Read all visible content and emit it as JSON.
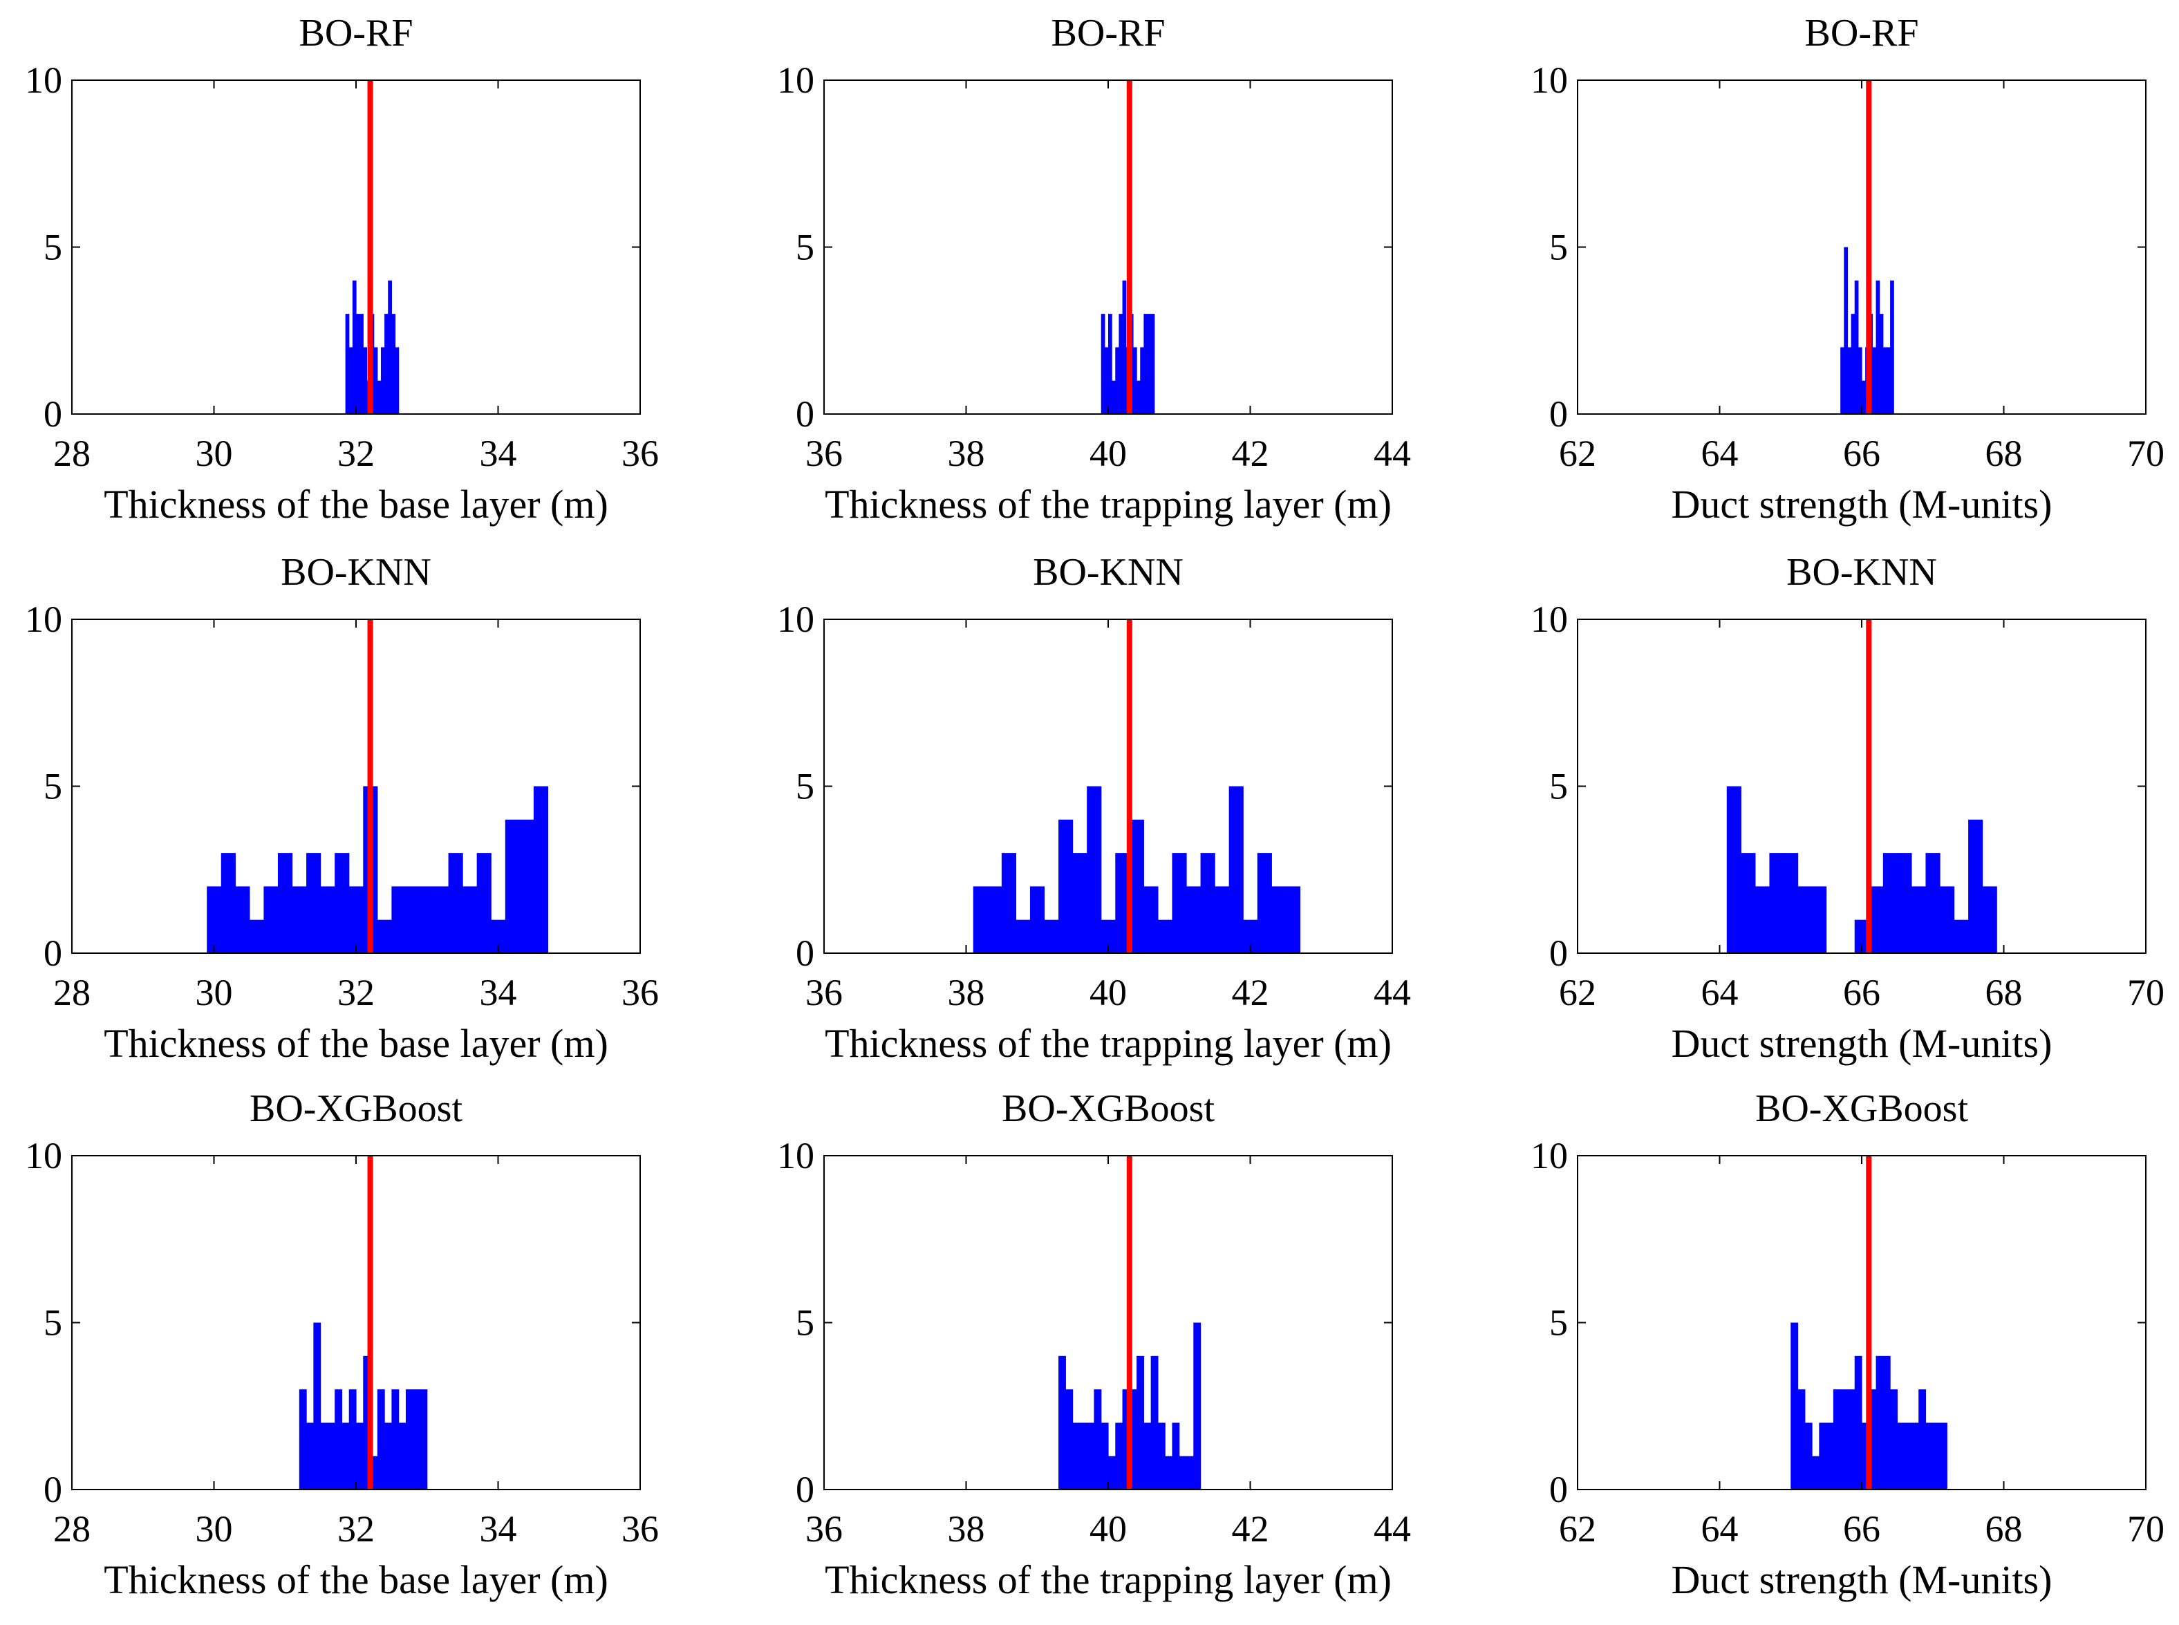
{
  "figure": {
    "colors": {
      "bar": "#0000ff",
      "reference": "#ff0000",
      "axes": "#000000"
    }
  },
  "chart_data": [
    {
      "type": "bar",
      "title": "BO-RF",
      "xlabel": "Thickness of the base layer (m)",
      "xlim": [
        28,
        36
      ],
      "ylim": [
        0,
        10
      ],
      "xticks": [
        28,
        30,
        32,
        34,
        36
      ],
      "yticks": [
        0,
        5,
        10
      ],
      "reference_x": 32.2,
      "bin_width": 0.05,
      "bins": [
        [
          31.85,
          3
        ],
        [
          31.9,
          2
        ],
        [
          31.95,
          4
        ],
        [
          32.0,
          3
        ],
        [
          32.05,
          3
        ],
        [
          32.1,
          2
        ],
        [
          32.15,
          1
        ],
        [
          32.2,
          3
        ],
        [
          32.25,
          2
        ],
        [
          32.3,
          1
        ],
        [
          32.35,
          2
        ],
        [
          32.4,
          3
        ],
        [
          32.45,
          4
        ],
        [
          32.5,
          3
        ],
        [
          32.55,
          2
        ]
      ]
    },
    {
      "type": "bar",
      "title": "BO-RF",
      "xlabel": "Thickness of the trapping layer (m)",
      "xlim": [
        36,
        44
      ],
      "ylim": [
        0,
        10
      ],
      "xticks": [
        36,
        38,
        40,
        42,
        44
      ],
      "yticks": [
        0,
        5,
        10
      ],
      "reference_x": 40.3,
      "bin_width": 0.05,
      "bins": [
        [
          39.9,
          3
        ],
        [
          39.95,
          2
        ],
        [
          40.0,
          3
        ],
        [
          40.05,
          1
        ],
        [
          40.1,
          2
        ],
        [
          40.15,
          3
        ],
        [
          40.2,
          4
        ],
        [
          40.25,
          2
        ],
        [
          40.3,
          3
        ],
        [
          40.35,
          2
        ],
        [
          40.4,
          1
        ],
        [
          40.45,
          2
        ],
        [
          40.5,
          3
        ],
        [
          40.55,
          3
        ],
        [
          40.6,
          3
        ]
      ]
    },
    {
      "type": "bar",
      "title": "BO-RF",
      "xlabel": "Duct strength (M-units)",
      "xlim": [
        62,
        70
      ],
      "ylim": [
        0,
        10
      ],
      "xticks": [
        62,
        64,
        66,
        68,
        70
      ],
      "yticks": [
        0,
        5,
        10
      ],
      "reference_x": 66.1,
      "bin_width": 0.05,
      "bins": [
        [
          65.7,
          2
        ],
        [
          65.75,
          5
        ],
        [
          65.8,
          2
        ],
        [
          65.85,
          3
        ],
        [
          65.9,
          4
        ],
        [
          65.95,
          2
        ],
        [
          66.0,
          1
        ],
        [
          66.05,
          2
        ],
        [
          66.1,
          3
        ],
        [
          66.15,
          2
        ],
        [
          66.2,
          4
        ],
        [
          66.25,
          3
        ],
        [
          66.3,
          2
        ],
        [
          66.35,
          2
        ],
        [
          66.4,
          4
        ]
      ]
    },
    {
      "type": "bar",
      "title": "BO-KNN",
      "xlabel": "Thickness of the base layer (m)",
      "xlim": [
        28,
        36
      ],
      "ylim": [
        0,
        10
      ],
      "xticks": [
        28,
        30,
        32,
        34,
        36
      ],
      "yticks": [
        0,
        5,
        10
      ],
      "reference_x": 32.2,
      "bin_width": 0.2,
      "bins": [
        [
          29.9,
          2
        ],
        [
          30.1,
          3
        ],
        [
          30.3,
          2
        ],
        [
          30.5,
          1
        ],
        [
          30.7,
          2
        ],
        [
          30.9,
          3
        ],
        [
          31.1,
          2
        ],
        [
          31.3,
          3
        ],
        [
          31.5,
          2
        ],
        [
          31.7,
          3
        ],
        [
          31.9,
          2
        ],
        [
          32.1,
          5
        ],
        [
          32.3,
          1
        ],
        [
          32.5,
          2
        ],
        [
          32.7,
          2
        ],
        [
          32.9,
          2
        ],
        [
          33.1,
          2
        ],
        [
          33.3,
          3
        ],
        [
          33.5,
          2
        ],
        [
          33.7,
          3
        ],
        [
          33.9,
          1
        ],
        [
          34.1,
          4
        ],
        [
          34.3,
          4
        ],
        [
          34.5,
          5
        ]
      ]
    },
    {
      "type": "bar",
      "title": "BO-KNN",
      "xlabel": "Thickness of the trapping layer (m)",
      "xlim": [
        36,
        44
      ],
      "ylim": [
        0,
        10
      ],
      "xticks": [
        36,
        38,
        40,
        42,
        44
      ],
      "yticks": [
        0,
        5,
        10
      ],
      "reference_x": 40.3,
      "bin_width": 0.2,
      "bins": [
        [
          38.1,
          2
        ],
        [
          38.3,
          2
        ],
        [
          38.5,
          3
        ],
        [
          38.7,
          1
        ],
        [
          38.9,
          2
        ],
        [
          39.1,
          1
        ],
        [
          39.3,
          4
        ],
        [
          39.5,
          3
        ],
        [
          39.7,
          5
        ],
        [
          39.9,
          1
        ],
        [
          40.1,
          3
        ],
        [
          40.3,
          4
        ],
        [
          40.5,
          2
        ],
        [
          40.7,
          1
        ],
        [
          40.9,
          3
        ],
        [
          41.1,
          2
        ],
        [
          41.3,
          3
        ],
        [
          41.5,
          2
        ],
        [
          41.7,
          5
        ],
        [
          41.9,
          1
        ],
        [
          42.1,
          3
        ],
        [
          42.3,
          2
        ],
        [
          42.5,
          2
        ]
      ]
    },
    {
      "type": "bar",
      "title": "BO-KNN",
      "xlabel": "Duct strength (M-units)",
      "xlim": [
        62,
        70
      ],
      "ylim": [
        0,
        10
      ],
      "xticks": [
        62,
        64,
        66,
        68,
        70
      ],
      "yticks": [
        0,
        5,
        10
      ],
      "reference_x": 66.1,
      "bin_width": 0.2,
      "bins": [
        [
          64.1,
          5
        ],
        [
          64.3,
          3
        ],
        [
          64.5,
          2
        ],
        [
          64.7,
          3
        ],
        [
          64.9,
          3
        ],
        [
          65.1,
          2
        ],
        [
          65.3,
          2
        ],
        [
          65.5,
          0
        ],
        [
          65.7,
          0
        ],
        [
          65.9,
          1
        ],
        [
          66.1,
          2
        ],
        [
          66.3,
          3
        ],
        [
          66.5,
          3
        ],
        [
          66.7,
          2
        ],
        [
          66.9,
          3
        ],
        [
          67.1,
          2
        ],
        [
          67.3,
          1
        ],
        [
          67.5,
          4
        ],
        [
          67.7,
          2
        ]
      ]
    },
    {
      "type": "bar",
      "title": "BO-XGBoost",
      "xlabel": "Thickness of the base layer (m)",
      "xlim": [
        28,
        36
      ],
      "ylim": [
        0,
        10
      ],
      "xticks": [
        28,
        30,
        32,
        34,
        36
      ],
      "yticks": [
        0,
        5,
        10
      ],
      "reference_x": 32.2,
      "bin_width": 0.1,
      "bins": [
        [
          31.2,
          3
        ],
        [
          31.3,
          2
        ],
        [
          31.4,
          5
        ],
        [
          31.5,
          2
        ],
        [
          31.6,
          2
        ],
        [
          31.7,
          3
        ],
        [
          31.8,
          2
        ],
        [
          31.9,
          3
        ],
        [
          32.0,
          2
        ],
        [
          32.1,
          4
        ],
        [
          32.2,
          1
        ],
        [
          32.3,
          3
        ],
        [
          32.4,
          2
        ],
        [
          32.5,
          3
        ],
        [
          32.6,
          2
        ],
        [
          32.7,
          3
        ],
        [
          32.8,
          3
        ],
        [
          32.9,
          3
        ]
      ]
    },
    {
      "type": "bar",
      "title": "BO-XGBoost",
      "xlabel": "Thickness of the trapping layer (m)",
      "xlim": [
        36,
        44
      ],
      "ylim": [
        0,
        10
      ],
      "xticks": [
        36,
        38,
        40,
        42,
        44
      ],
      "yticks": [
        0,
        5,
        10
      ],
      "reference_x": 40.3,
      "bin_width": 0.1,
      "bins": [
        [
          39.3,
          4
        ],
        [
          39.4,
          3
        ],
        [
          39.5,
          2
        ],
        [
          39.6,
          2
        ],
        [
          39.7,
          2
        ],
        [
          39.8,
          3
        ],
        [
          39.9,
          2
        ],
        [
          40.0,
          1
        ],
        [
          40.1,
          2
        ],
        [
          40.2,
          3
        ],
        [
          40.3,
          3
        ],
        [
          40.4,
          4
        ],
        [
          40.5,
          2
        ],
        [
          40.6,
          4
        ],
        [
          40.7,
          2
        ],
        [
          40.8,
          1
        ],
        [
          40.9,
          2
        ],
        [
          41.0,
          1
        ],
        [
          41.1,
          1
        ],
        [
          41.2,
          5
        ]
      ]
    },
    {
      "type": "bar",
      "title": "BO-XGBoost",
      "xlabel": "Duct strength (M-units)",
      "xlim": [
        62,
        70
      ],
      "ylim": [
        0,
        10
      ],
      "xticks": [
        62,
        64,
        66,
        68,
        70
      ],
      "yticks": [
        0,
        5,
        10
      ],
      "reference_x": 66.1,
      "bin_width": 0.1,
      "bins": [
        [
          65.0,
          5
        ],
        [
          65.1,
          3
        ],
        [
          65.2,
          2
        ],
        [
          65.3,
          1
        ],
        [
          65.4,
          2
        ],
        [
          65.5,
          2
        ],
        [
          65.6,
          3
        ],
        [
          65.7,
          3
        ],
        [
          65.8,
          3
        ],
        [
          65.9,
          4
        ],
        [
          66.0,
          2
        ],
        [
          66.1,
          3
        ],
        [
          66.2,
          4
        ],
        [
          66.3,
          4
        ],
        [
          66.4,
          3
        ],
        [
          66.5,
          2
        ],
        [
          66.6,
          2
        ],
        [
          66.7,
          2
        ],
        [
          66.8,
          3
        ],
        [
          66.9,
          2
        ],
        [
          67.0,
          2
        ],
        [
          67.1,
          2
        ]
      ]
    }
  ]
}
